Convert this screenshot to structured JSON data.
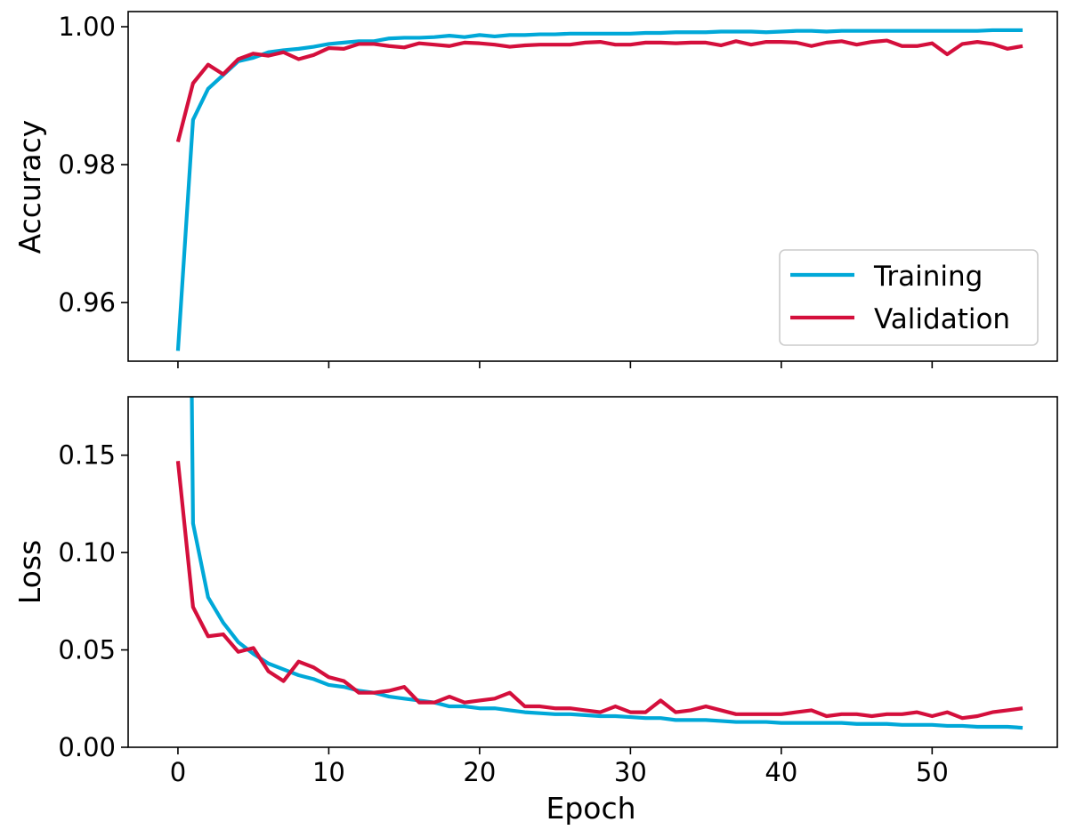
{
  "colors": {
    "training": "#00a8d8",
    "validation": "#d40f3c"
  },
  "chart_data": [
    {
      "type": "line",
      "title": "",
      "xlabel": "",
      "ylabel": "Accuracy",
      "xlim": [
        -3.3,
        58.3
      ],
      "ylim": [
        0.9515,
        1.0022
      ],
      "x_ticks": [
        0,
        10,
        20,
        30,
        40,
        50
      ],
      "x_tick_labels_shown": false,
      "y_ticks": [
        0.96,
        0.98,
        1.0
      ],
      "y_tick_labels": [
        "0.96",
        "0.98",
        "1.00"
      ],
      "grid": false,
      "legend_position": "bottom-right",
      "x": [
        0,
        1,
        2,
        3,
        4,
        5,
        6,
        7,
        8,
        9,
        10,
        11,
        12,
        13,
        14,
        15,
        16,
        17,
        18,
        19,
        20,
        21,
        22,
        23,
        24,
        25,
        26,
        27,
        28,
        29,
        30,
        31,
        32,
        33,
        34,
        35,
        36,
        37,
        38,
        39,
        40,
        41,
        42,
        43,
        44,
        45,
        46,
        47,
        48,
        49,
        50,
        51,
        52,
        53,
        54,
        55,
        56
      ],
      "series": [
        {
          "name": "Training",
          "color_key": "training",
          "values": [
            0.953,
            0.9865,
            0.991,
            0.993,
            0.995,
            0.9955,
            0.9963,
            0.9966,
            0.9968,
            0.9971,
            0.9975,
            0.9977,
            0.9979,
            0.9979,
            0.9983,
            0.9984,
            0.9984,
            0.9985,
            0.9987,
            0.9985,
            0.9988,
            0.9986,
            0.9988,
            0.9988,
            0.9989,
            0.9989,
            0.999,
            0.999,
            0.999,
            0.999,
            0.999,
            0.9991,
            0.9991,
            0.9992,
            0.9992,
            0.9992,
            0.9993,
            0.9993,
            0.9993,
            0.9992,
            0.9993,
            0.9994,
            0.9994,
            0.9993,
            0.9994,
            0.9994,
            0.9994,
            0.9994,
            0.9994,
            0.9994,
            0.9994,
            0.9994,
            0.9994,
            0.9994,
            0.9995,
            0.9995,
            0.9995
          ]
        },
        {
          "name": "Validation",
          "color_key": "validation",
          "values": [
            0.9833,
            0.9918,
            0.9945,
            0.9931,
            0.9953,
            0.9961,
            0.9958,
            0.9963,
            0.9953,
            0.9959,
            0.9969,
            0.9968,
            0.9975,
            0.9975,
            0.9972,
            0.997,
            0.9976,
            0.9974,
            0.9972,
            0.9977,
            0.9976,
            0.9974,
            0.9971,
            0.9973,
            0.9974,
            0.9974,
            0.9974,
            0.9977,
            0.9978,
            0.9974,
            0.9974,
            0.9977,
            0.9977,
            0.9976,
            0.9977,
            0.9977,
            0.9973,
            0.9979,
            0.9974,
            0.9978,
            0.9978,
            0.9977,
            0.9972,
            0.9977,
            0.9979,
            0.9974,
            0.9978,
            0.998,
            0.9972,
            0.9972,
            0.9976,
            0.996,
            0.9975,
            0.9978,
            0.9975,
            0.9968,
            0.9972
          ]
        }
      ]
    },
    {
      "type": "line",
      "title": "",
      "xlabel": "Epoch",
      "ylabel": "Loss",
      "xlim": [
        -3.3,
        58.3
      ],
      "ylim": [
        0.0,
        0.18
      ],
      "x_ticks": [
        0,
        10,
        20,
        30,
        40,
        50
      ],
      "x_tick_labels": [
        "0",
        "10",
        "20",
        "30",
        "40",
        "50"
      ],
      "y_ticks": [
        0.0,
        0.05,
        0.1,
        0.15
      ],
      "y_tick_labels": [
        "0.00",
        "0.05",
        "0.10",
        "0.15"
      ],
      "grid": false,
      "x": [
        0,
        1,
        2,
        3,
        4,
        5,
        6,
        7,
        8,
        9,
        10,
        11,
        12,
        13,
        14,
        15,
        16,
        17,
        18,
        19,
        20,
        21,
        22,
        23,
        24,
        25,
        26,
        27,
        28,
        29,
        30,
        31,
        32,
        33,
        34,
        35,
        36,
        37,
        38,
        39,
        40,
        41,
        42,
        43,
        44,
        45,
        46,
        47,
        48,
        49,
        50,
        51,
        52,
        53,
        54,
        55,
        56
      ],
      "series": [
        {
          "name": "Training",
          "color_key": "training",
          "values": [
            null,
            0.115,
            0.077,
            0.064,
            0.054,
            0.048,
            0.043,
            0.04,
            0.037,
            0.035,
            0.032,
            0.031,
            0.029,
            0.028,
            0.026,
            0.025,
            0.024,
            0.023,
            0.021,
            0.021,
            0.02,
            0.02,
            0.019,
            0.018,
            0.0175,
            0.017,
            0.017,
            0.0165,
            0.016,
            0.016,
            0.0155,
            0.015,
            0.015,
            0.014,
            0.014,
            0.014,
            0.0135,
            0.013,
            0.013,
            0.013,
            0.0125,
            0.0125,
            0.0125,
            0.0125,
            0.0125,
            0.012,
            0.012,
            0.012,
            0.0115,
            0.0115,
            0.0115,
            0.011,
            0.011,
            0.0105,
            0.0105,
            0.0105,
            0.01
          ],
          "clipped_start": {
            "x": [
              0.92,
              1.0
            ],
            "values": [
              0.18,
              0.115
            ]
          }
        },
        {
          "name": "Validation",
          "color_key": "validation",
          "values": [
            0.147,
            0.072,
            0.057,
            0.058,
            0.049,
            0.051,
            0.039,
            0.034,
            0.044,
            0.041,
            0.036,
            0.034,
            0.028,
            0.028,
            0.029,
            0.031,
            0.023,
            0.023,
            0.026,
            0.023,
            0.024,
            0.025,
            0.028,
            0.021,
            0.021,
            0.02,
            0.02,
            0.019,
            0.018,
            0.021,
            0.018,
            0.018,
            0.024,
            0.018,
            0.019,
            0.021,
            0.019,
            0.017,
            0.017,
            0.017,
            0.017,
            0.018,
            0.019,
            0.016,
            0.017,
            0.017,
            0.016,
            0.017,
            0.017,
            0.018,
            0.016,
            0.018,
            0.015,
            0.016,
            0.018,
            0.019,
            0.02
          ]
        }
      ]
    }
  ]
}
